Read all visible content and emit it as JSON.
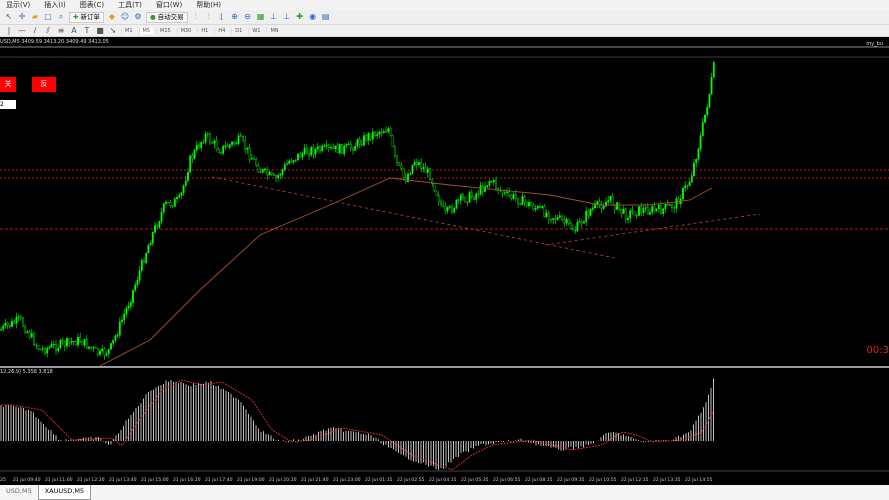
{
  "menu": [
    "显示(V)",
    "插入(I)",
    "图表(C)",
    "工具(T)",
    "窗口(W)",
    "帮助(H)"
  ],
  "toolbar": {
    "new_order": "新订单",
    "auto_trading": "自动交易"
  },
  "timeframes": [
    "M1",
    "M5",
    "M15",
    "M30",
    "H1",
    "H4",
    "D1",
    "W1",
    "MN"
  ],
  "chart": {
    "header": "USD,M5  3409.59 3413.20 3409.49 3413.05",
    "ea_name": "my_bu",
    "btn_close": "关",
    "btn_reverse": "反",
    "input_value": "2",
    "timer": "00:3",
    "macd_label": "12,26,9) 5.358 3.818",
    "colors": {
      "bull": "#00ff00",
      "ma": "#a0522d",
      "level": "#ff2020",
      "trend": "#c04040",
      "macd_hist": "#c0c0c0",
      "signal": "#ff3030"
    }
  },
  "time_axis": [
    "25",
    "21 Jul 09:40",
    "21 Jul 11:00",
    "21 Jul 12:20",
    "21 Jul 13:40",
    "21 Jul 15:00",
    "21 Jul 16:20",
    "21 Jul 17:40",
    "21 Jul 19:00",
    "21 Jul 20:20",
    "21 Jul 21:40",
    "21 Jul 23:00",
    "22 Jul 01:35",
    "22 Jul 02:55",
    "22 Jul 04:15",
    "22 Jul 05:35",
    "22 Jul 06:55",
    "22 Jul 08:15",
    "22 Jul 09:35",
    "22 Jul 10:55",
    "22 Jul 12:15",
    "22 Jul 13:35",
    "22 Jul 14:55"
  ],
  "tabs": [
    "USD,M5",
    "XAUUSD,M5"
  ]
}
